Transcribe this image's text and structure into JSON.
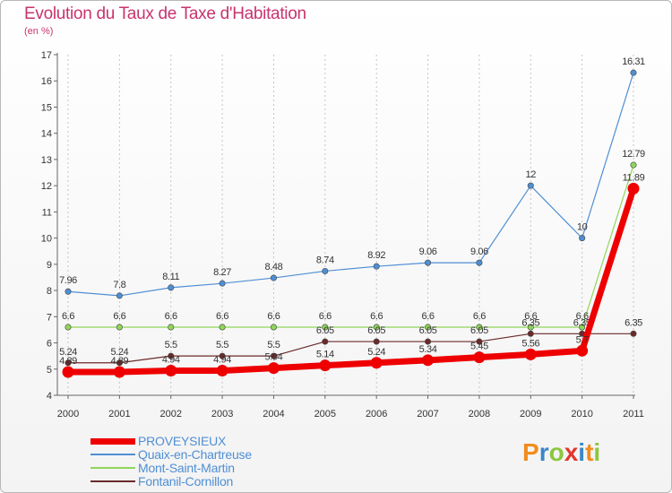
{
  "title": "Evolution du Taux de Taxe d'Habitation",
  "subtitle": "(en %)",
  "logo": {
    "text": "Proxiti",
    "colors": [
      "#f28c1e",
      "#3a86c8",
      "#8cc63f",
      "#e2382d",
      "#3a86c8",
      "#f28c1e",
      "#8cc63f"
    ]
  },
  "chart_data": {
    "type": "line",
    "x": [
      "2000",
      "2001",
      "2002",
      "2003",
      "2004",
      "2005",
      "2006",
      "2007",
      "2008",
      "2009",
      "2010",
      "2011"
    ],
    "ylim": [
      4,
      17
    ],
    "yticks": [
      4,
      5,
      6,
      7,
      8,
      9,
      10,
      11,
      12,
      13,
      14,
      15,
      16,
      17
    ],
    "grid": "vertical dashed",
    "legend_position": "bottom-left",
    "series": [
      {
        "name": "Quaix-en-Chartreuse",
        "color": "#4f8fd4",
        "labels": [
          "7.96",
          "7.8",
          "8.11",
          "8.27",
          "8.48",
          "8.74",
          "8.92",
          "9.06",
          "9.06",
          "12",
          "10",
          "16.31"
        ],
        "values": [
          7.96,
          7.8,
          8.11,
          8.27,
          8.48,
          8.74,
          8.92,
          9.06,
          9.06,
          12,
          10,
          16.31
        ],
        "width": 1.2,
        "marker": 3.2
      },
      {
        "name": "Mont-Saint-Martin",
        "color": "#8fd65a",
        "labels": [
          "6.6",
          "6.6",
          "6.6",
          "6.6",
          "6.6",
          "6.6",
          "6.6",
          "6.6",
          "6.6",
          "6.6",
          "6.6",
          "12.79"
        ],
        "values": [
          6.6,
          6.6,
          6.6,
          6.6,
          6.6,
          6.6,
          6.6,
          6.6,
          6.6,
          6.6,
          6.6,
          12.79
        ],
        "width": 1.2,
        "marker": 3.2
      },
      {
        "name": "Fontanil-Cornillon",
        "color": "#6b2a2a",
        "labels": [
          "5.24",
          "5.24",
          "5.5",
          "5.5",
          "5.5",
          "6.05",
          "6.05",
          "6.05",
          "6.05",
          "6.35",
          "6.35",
          "6.35"
        ],
        "values": [
          5.24,
          5.24,
          5.5,
          5.5,
          5.5,
          6.05,
          6.05,
          6.05,
          6.05,
          6.35,
          6.35,
          6.35
        ],
        "width": 1.2,
        "marker": 3.2
      },
      {
        "name": "PROVEYSIEUX",
        "color": "#ee0000",
        "labels": [
          "4.89",
          "4.89",
          "4.94",
          "4.94",
          "5.04",
          "5.14",
          "5.24",
          "5.34",
          "5.45",
          "5.56",
          "5.7",
          "11.89"
        ],
        "values": [
          4.89,
          4.89,
          4.94,
          4.94,
          5.04,
          5.14,
          5.24,
          5.34,
          5.45,
          5.56,
          5.7,
          11.89
        ],
        "width": 7,
        "marker": 6.5
      }
    ]
  },
  "legend": [
    {
      "label": "PROVEYSIEUX",
      "color": "#ee0000",
      "thickness": 7
    },
    {
      "label": "Quaix-en-Chartreuse",
      "color": "#4f8fd4",
      "thickness": 1.5
    },
    {
      "label": "Mont-Saint-Martin",
      "color": "#8fd65a",
      "thickness": 1.5
    },
    {
      "label": "Fontanil-Cornillon",
      "color": "#6b2a2a",
      "thickness": 1.5
    }
  ]
}
